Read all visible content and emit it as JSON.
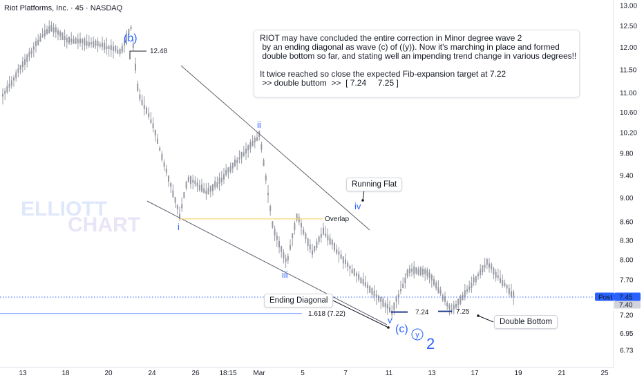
{
  "symbol_title": "Riot Platforms, Inc. · 45 · NASDAQ",
  "note": {
    "lines": [
      "RIOT may have concluded the entire correction in Minor degree wave 2",
      " by an ending diagonal as wave (c) of ((y)). Now it's marching in place and formed",
      " double bottom so far, and stating well an impending trend change in various degrees!!",
      "",
      "It twice reached so close the expected Fib-expansion target at 7.22",
      " >> double buttom  >>  [ 7.24     7.25 ]"
    ]
  },
  "callouts": {
    "running_flat": "Running Flat",
    "ending_diagonal": "Ending Diagonal",
    "double_bottom": "Double Bottom"
  },
  "watermark": {
    "line1": "ELLIOTT",
    "line2": "CHART"
  },
  "price_tag": {
    "label": "Post",
    "value": "7.45",
    "value2": "7.40"
  },
  "colors": {
    "accent": "#2962ff",
    "candles": "#9598a1",
    "overlap": "#f7d774",
    "fib": "#2962ff"
  },
  "chart_data": {
    "type": "candlestick",
    "title": "Riot Platforms, Inc. · 45 · NASDAQ",
    "y_axis": {
      "ticks": [
        13.0,
        12.5,
        12.0,
        11.5,
        11.0,
        10.6,
        10.2,
        9.8,
        9.4,
        9.0,
        8.6,
        8.3,
        8.0,
        7.7,
        7.45,
        7.2,
        6.95,
        6.73
      ],
      "tick_labels": [
        "13.00",
        "12.50",
        "12.00",
        "11.50",
        "11.00",
        "10.60",
        "10.20",
        "9.80",
        "9.40",
        "9.00",
        "8.60",
        "8.30",
        "8.00",
        "7.70",
        "7.45",
        "7.20",
        "6.95",
        "6.73"
      ],
      "scale": "log",
      "range": [
        6.6,
        13.2
      ]
    },
    "x_axis": {
      "tick_labels": [
        "13",
        "18",
        "20",
        "24",
        "26",
        "18:15",
        "Mar",
        "5",
        "7",
        "11",
        "13",
        "17",
        "19",
        "21",
        "25"
      ]
    },
    "price_path": [
      {
        "date": "Feb 11",
        "price": 10.95
      },
      {
        "date": "Feb 13",
        "price": 12.3
      },
      {
        "date": "Feb 14",
        "price": 12.45
      },
      {
        "date": "Feb 17",
        "price": 12.2
      },
      {
        "date": "Feb 18",
        "price": 12.1
      },
      {
        "date": "Feb 19",
        "price": 12.0
      },
      {
        "date": "Feb 20",
        "price": 11.9
      },
      {
        "date": "Feb 21",
        "price": 12.48
      },
      {
        "date": "Feb 22",
        "price": 11.0
      },
      {
        "date": "Feb 24",
        "price": 10.4
      },
      {
        "date": "Feb 25",
        "price": 8.7
      },
      {
        "date": "Feb 26",
        "price": 9.35
      },
      {
        "date": "Feb 27",
        "price": 9.1
      },
      {
        "date": "Feb 28",
        "price": 9.3
      },
      {
        "date": "Mar 3",
        "price": 10.15
      },
      {
        "date": "Mar 4",
        "price": 8.5
      },
      {
        "date": "Mar 5",
        "price": 7.95
      },
      {
        "date": "Mar 6",
        "price": 8.7
      },
      {
        "date": "Mar 7",
        "price": 8.1
      },
      {
        "date": "Mar 8",
        "price": 8.45
      },
      {
        "date": "Mar 10",
        "price": 7.95
      },
      {
        "date": "Mar 11",
        "price": 7.24
      },
      {
        "date": "Mar 12",
        "price": 7.85
      },
      {
        "date": "Mar 13",
        "price": 7.25
      },
      {
        "date": "Mar 14",
        "price": 7.8
      },
      {
        "date": "Mar 17",
        "price": 7.95
      },
      {
        "date": "Mar 18",
        "price": 7.45
      }
    ],
    "annotations": {
      "wave_labels": [
        "(b)",
        "i",
        "ii",
        "iii",
        "iv",
        "v",
        "(c)",
        "y",
        "2"
      ],
      "b_high_label": "12.48",
      "overlap_label": "Overlap",
      "fib_label": "1.618 (7.22)",
      "fib_level": 7.22,
      "double_bottom_labels": [
        "7.24",
        "7.25"
      ],
      "overlap_level": 8.65
    }
  }
}
